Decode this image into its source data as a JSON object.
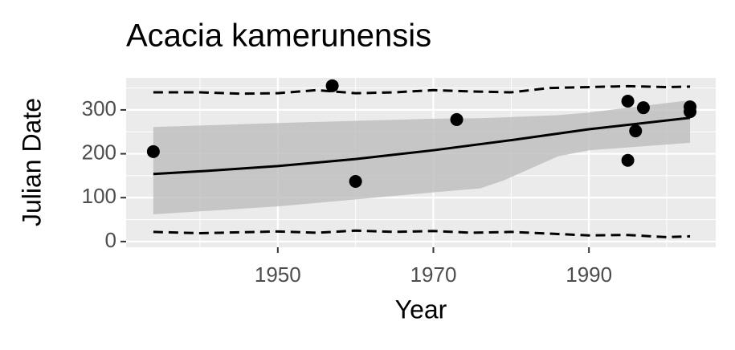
{
  "chart_data": {
    "type": "scatter",
    "title": "Acacia kamerunensis",
    "x_label": "Year",
    "y_label": "Julian Date",
    "x": [
      1934,
      1957,
      1960,
      1973,
      1995,
      1995,
      1996,
      1997,
      2003,
      2003
    ],
    "values": [
      205,
      355,
      137,
      278,
      320,
      185,
      252,
      305,
      307,
      296
    ],
    "color": "#000000",
    "smooth": {
      "color": "#000000",
      "x": [
        1934,
        1940,
        1950,
        1960,
        1970,
        1980,
        1990,
        2003
      ],
      "values": [
        154,
        160,
        172,
        188,
        208,
        231,
        256,
        282
      ]
    },
    "ribbon": {
      "color": "#bdbdbd",
      "x": [
        1934,
        1950,
        1970,
        1976,
        1979,
        1986,
        1990,
        2003
      ],
      "upper": [
        261,
        270,
        280,
        281,
        283,
        288,
        294,
        322
      ],
      "lower": [
        62,
        80,
        112,
        121,
        139,
        194,
        208,
        225
      ]
    },
    "quantile_lines": [
      {
        "x": [
          1934,
          1940,
          1945,
          1950,
          1955,
          1960,
          1965,
          1970,
          1975,
          1980,
          1985,
          1990,
          1995,
          2000,
          2003
        ],
        "values": [
          340,
          340,
          337,
          338,
          345,
          338,
          340,
          345,
          342,
          340,
          350,
          352,
          354,
          352,
          353
        ]
      },
      {
        "x": [
          1934,
          1940,
          1945,
          1950,
          1955,
          1960,
          1965,
          1970,
          1975,
          1980,
          1985,
          1990,
          1995,
          2000,
          2003
        ],
        "values": [
          22,
          19,
          21,
          23,
          20,
          25,
          22,
          24,
          20,
          22,
          18,
          14,
          15,
          10,
          12
        ]
      }
    ],
    "xlim": [
      1930.5,
      2006.3
    ],
    "ylim": [
      -13,
      373
    ],
    "xticks": [
      1950,
      1970,
      1990
    ],
    "yticks": [
      0,
      100,
      200,
      300
    ],
    "xminor": [
      1940,
      1960,
      1980,
      2000
    ],
    "yminor": [
      50,
      150,
      250,
      350
    ],
    "grid": true
  }
}
